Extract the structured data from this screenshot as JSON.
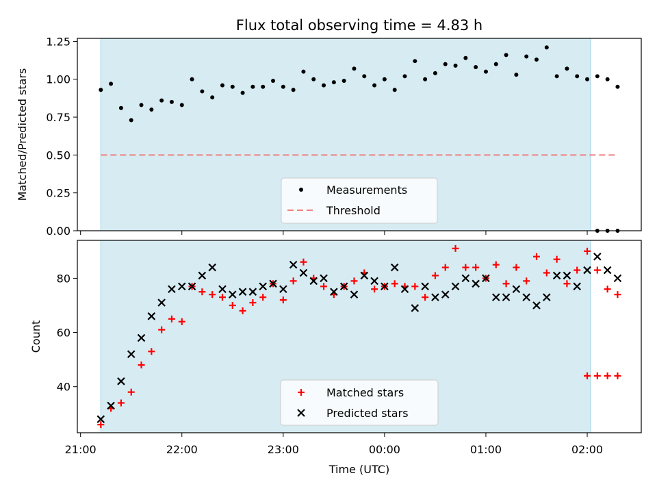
{
  "title": "Flux total observing time = 4.83 h",
  "colors": {
    "background_shade": "#add8e6",
    "measurement": "#000000",
    "threshold": "#f08080",
    "matched": "#ff0000",
    "predicted": "#000000"
  },
  "chart_data": [
    {
      "type": "scatter",
      "ylabel": "Matched/Predicted stars",
      "ylim": [
        0,
        1.27
      ],
      "yticks": [
        "0.00",
        "0.25",
        "0.50",
        "0.75",
        "1.00",
        "1.25"
      ],
      "ytick_values": [
        0,
        0.25,
        0.5,
        0.75,
        1.0,
        1.25
      ],
      "xlim": [
        "21:00",
        "02:30"
      ],
      "shaded_span": [
        "21:12",
        "02:02"
      ],
      "legend": {
        "placement": "lower-center",
        "entries": [
          "Measurements",
          "Threshold"
        ]
      },
      "threshold": {
        "name": "Threshold",
        "value": 0.5,
        "x_range": [
          "21:12",
          "02:17"
        ]
      },
      "series": [
        {
          "name": "Measurements",
          "x": [
            "21:12",
            "21:18",
            "21:24",
            "21:30",
            "21:36",
            "21:42",
            "21:48",
            "21:54",
            "22:00",
            "22:06",
            "22:12",
            "22:18",
            "22:24",
            "22:30",
            "22:36",
            "22:42",
            "22:48",
            "22:54",
            "23:00",
            "23:06",
            "23:12",
            "23:18",
            "23:24",
            "23:30",
            "23:36",
            "23:42",
            "23:48",
            "23:54",
            "00:00",
            "00:06",
            "00:12",
            "00:18",
            "00:24",
            "00:30",
            "00:36",
            "00:42",
            "00:48",
            "00:54",
            "01:00",
            "01:06",
            "01:12",
            "01:18",
            "01:24",
            "01:30",
            "01:36",
            "01:42",
            "01:48",
            "01:54",
            "02:00",
            "02:06",
            "02:12",
            "02:18"
          ],
          "y": [
            0.93,
            0.97,
            0.81,
            0.73,
            0.83,
            0.8,
            0.86,
            0.85,
            0.83,
            1.0,
            0.92,
            0.88,
            0.96,
            0.95,
            0.91,
            0.95,
            0.95,
            0.99,
            0.95,
            0.93,
            1.05,
            1.0,
            0.96,
            0.98,
            0.99,
            1.07,
            1.02,
            0.96,
            1.0,
            0.93,
            1.02,
            1.12,
            1.0,
            1.04,
            1.1,
            1.09,
            1.14,
            1.08,
            1.05,
            1.1,
            1.16,
            1.03,
            1.15,
            1.13,
            1.21,
            1.02,
            1.07,
            1.02,
            1.0,
            1.02,
            1.0,
            0.95
          ]
        }
      ]
    },
    {
      "type": "scatter",
      "xlabel": "Time (UTC)",
      "ylabel": "Count",
      "ylim": [
        23,
        94
      ],
      "yticks": [
        "40",
        "60",
        "80"
      ],
      "ytick_values": [
        40,
        60,
        80
      ],
      "xlim": [
        "21:00",
        "02:30"
      ],
      "xticks": [
        "21:00",
        "22:00",
        "23:00",
        "00:00",
        "01:00",
        "02:00"
      ],
      "shaded_span": [
        "21:12",
        "02:02"
      ],
      "legend": {
        "placement": "lower-center",
        "entries": [
          "Matched stars",
          "Predicted stars"
        ]
      },
      "series": [
        {
          "name": "Matched stars",
          "marker": "plus",
          "x": [
            "21:12",
            "21:18",
            "21:24",
            "21:30",
            "21:36",
            "21:42",
            "21:48",
            "21:54",
            "22:00",
            "22:06",
            "22:12",
            "22:18",
            "22:24",
            "22:30",
            "22:36",
            "22:42",
            "22:48",
            "22:54",
            "23:00",
            "23:06",
            "23:12",
            "23:18",
            "23:24",
            "23:30",
            "23:36",
            "23:42",
            "23:48",
            "23:54",
            "00:00",
            "00:06",
            "00:12",
            "00:18",
            "00:24",
            "00:30",
            "00:36",
            "00:42",
            "00:48",
            "00:54",
            "01:00",
            "01:06",
            "01:12",
            "01:18",
            "01:24",
            "01:30",
            "01:36",
            "01:42",
            "01:48",
            "01:54",
            "02:00",
            "02:06",
            "02:12",
            "02:18"
          ],
          "y": [
            26,
            32,
            34,
            38,
            48,
            53,
            61,
            65,
            64,
            77,
            75,
            74,
            73,
            70,
            68,
            71,
            73,
            78,
            72,
            79,
            86,
            80,
            77,
            74,
            77,
            79,
            82,
            76,
            77,
            78,
            77,
            77,
            73,
            81,
            84,
            91,
            84,
            84,
            80,
            85,
            78,
            84,
            79,
            88,
            82,
            87,
            78,
            83,
            90,
            83,
            76,
            74
          ]
        },
        {
          "name": "Predicted stars",
          "marker": "x",
          "x": [
            "21:12",
            "21:18",
            "21:24",
            "21:30",
            "21:36",
            "21:42",
            "21:48",
            "21:54",
            "22:00",
            "22:06",
            "22:12",
            "22:18",
            "22:24",
            "22:30",
            "22:36",
            "22:42",
            "22:48",
            "22:54",
            "23:00",
            "23:06",
            "23:12",
            "23:18",
            "23:24",
            "23:30",
            "23:36",
            "23:42",
            "23:48",
            "23:54",
            "00:00",
            "00:06",
            "00:12",
            "00:18",
            "00:24",
            "00:30",
            "00:36",
            "00:42",
            "00:48",
            "00:54",
            "01:00",
            "01:06",
            "01:12",
            "01:18",
            "01:24",
            "01:30",
            "01:36",
            "01:42",
            "01:48",
            "01:54",
            "02:00",
            "02:06",
            "02:12",
            "02:18"
          ],
          "y": [
            28,
            33,
            42,
            52,
            58,
            66,
            71,
            76,
            77,
            77,
            81,
            84,
            76,
            74,
            75,
            75,
            77,
            78,
            76,
            85,
            82,
            79,
            80,
            75,
            77,
            74,
            81,
            79,
            77,
            84,
            76,
            69,
            77,
            73,
            74,
            77,
            80,
            78,
            80,
            73,
            73,
            76,
            73,
            70,
            73,
            81,
            81,
            77,
            83,
            88,
            83,
            80
          ]
        }
      ]
    }
  ],
  "tail_points": {
    "top": {
      "x": [
        "02:06",
        "02:12",
        "02:18"
      ],
      "y": [
        0,
        0,
        0
      ]
    },
    "bottom_matched": {
      "x": [
        "02:00",
        "02:06",
        "02:12",
        "02:18"
      ],
      "y": [
        44,
        44,
        44,
        44
      ]
    }
  }
}
